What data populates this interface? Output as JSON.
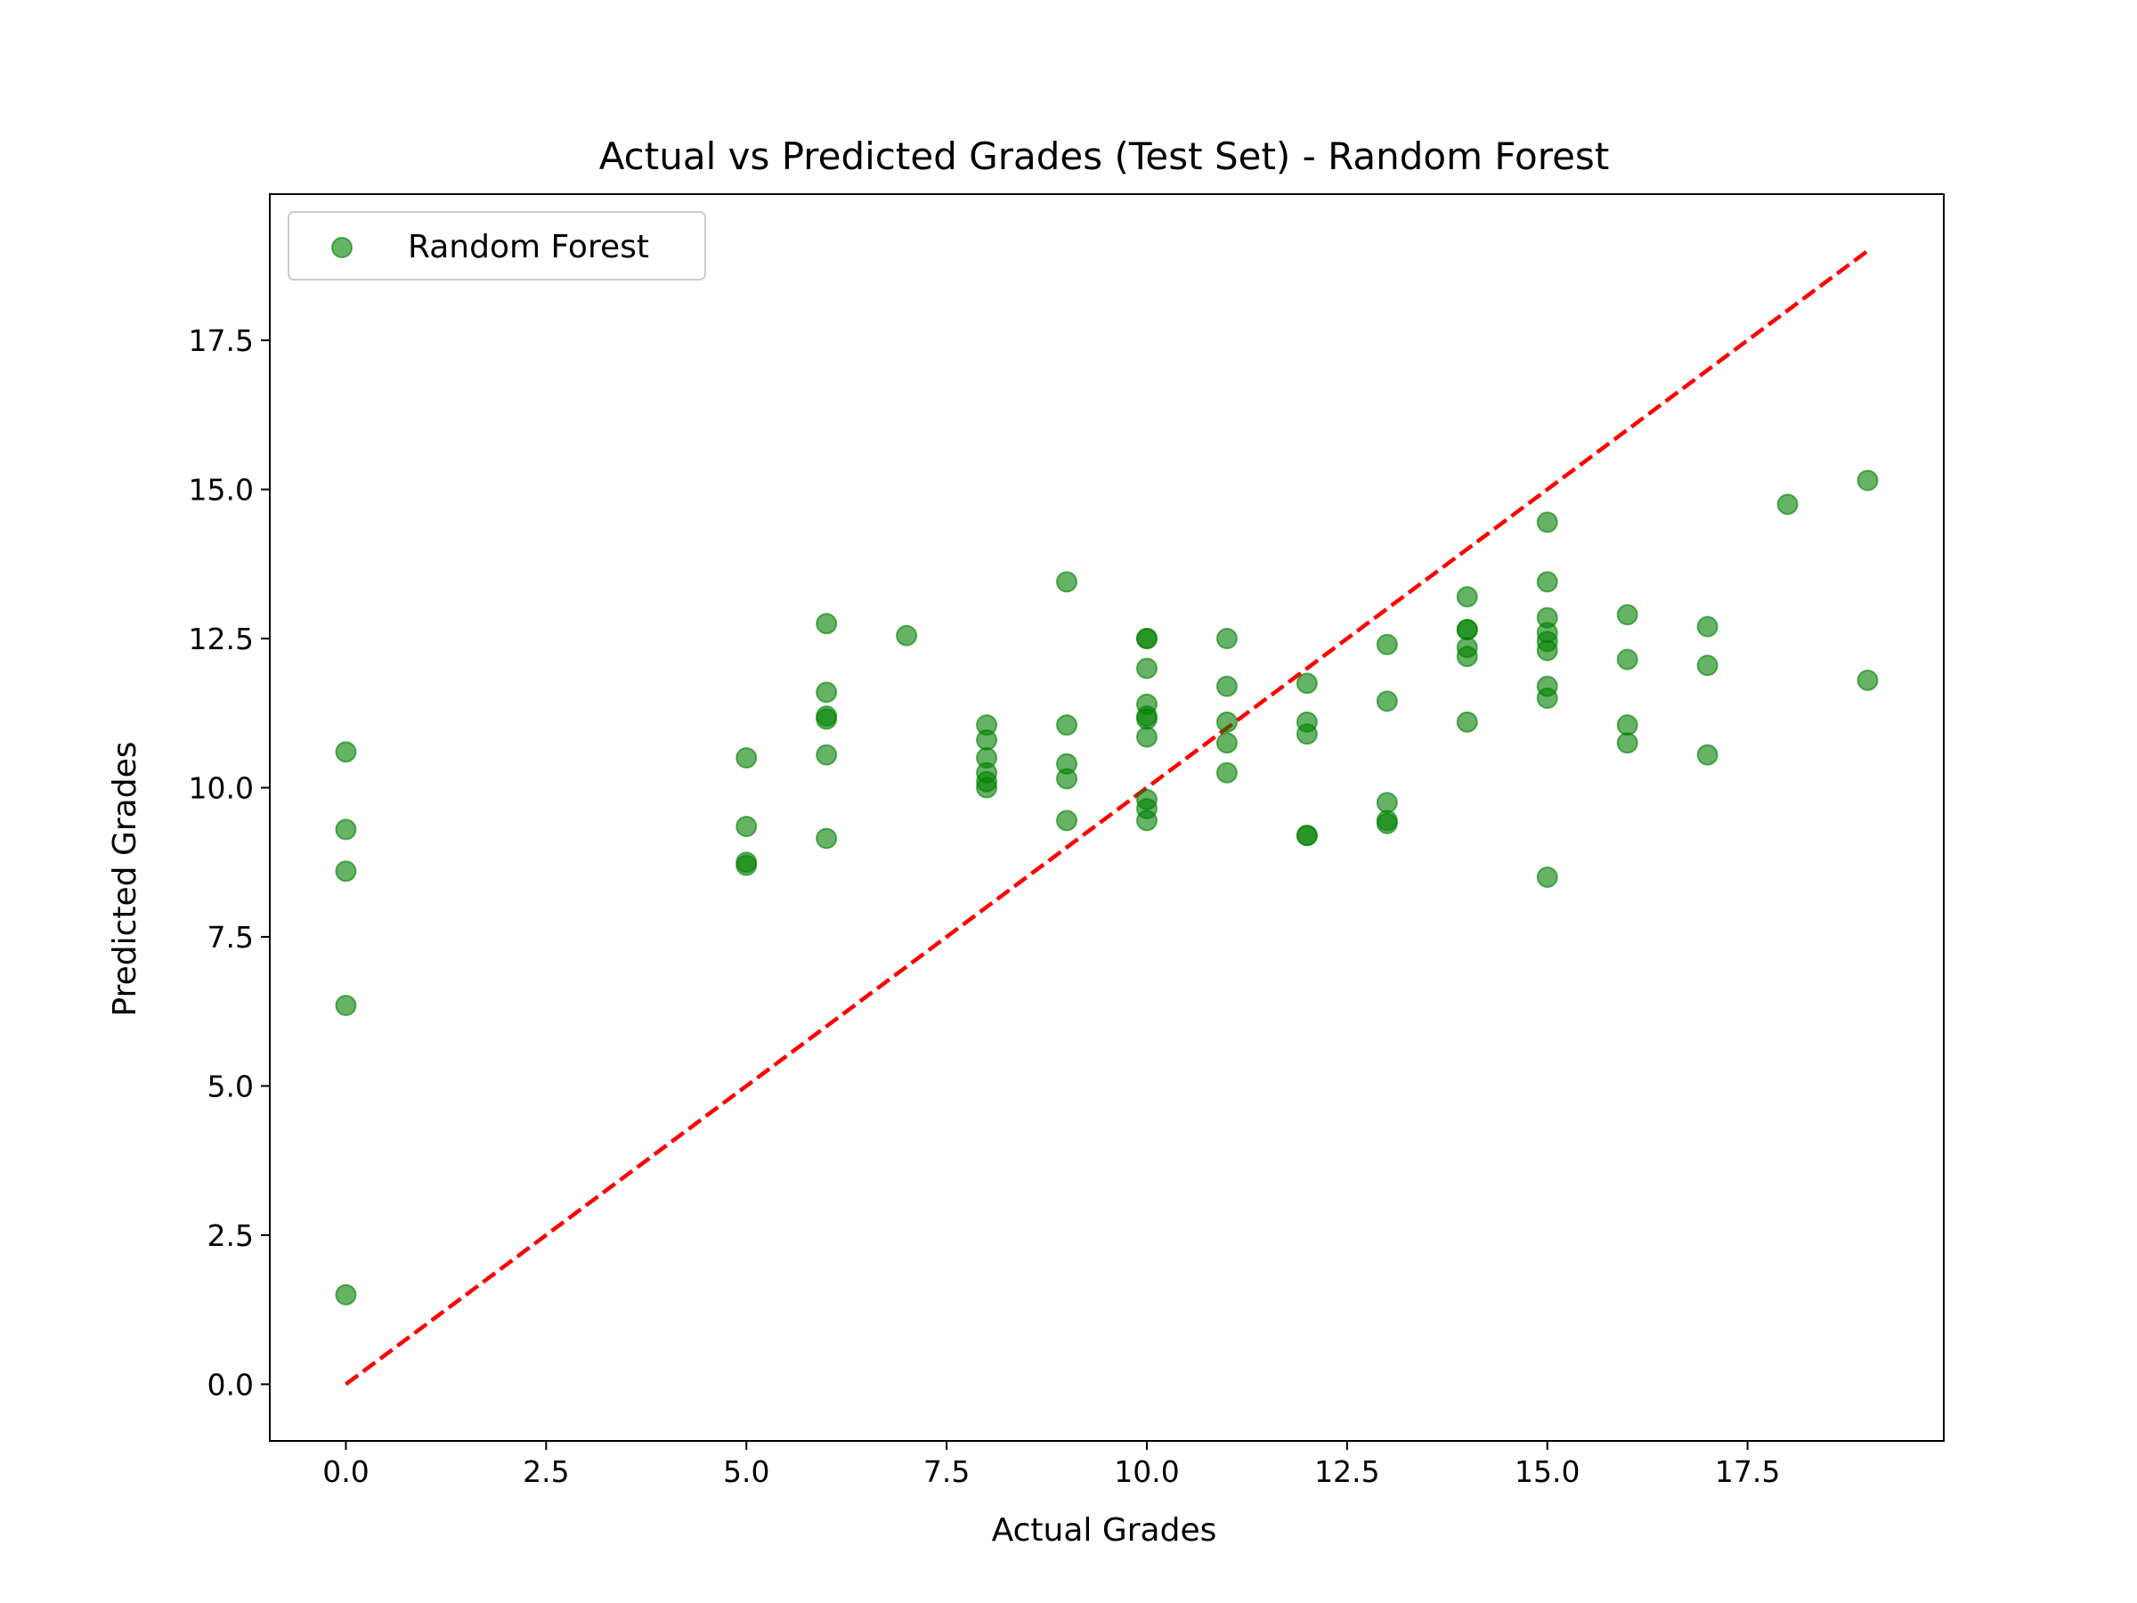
{
  "chart_data": {
    "type": "scatter",
    "title": "Actual vs Predicted Grades (Test Set) - Random Forest",
    "xlabel": "Actual Grades",
    "ylabel": "Predicted Grades",
    "xlim": [
      -0.95,
      19.95
    ],
    "ylim": [
      -0.95,
      19.95
    ],
    "xticks": [
      "0.0",
      "2.5",
      "5.0",
      "7.5",
      "10.0",
      "12.5",
      "15.0",
      "17.5"
    ],
    "yticks": [
      "0.0",
      "2.5",
      "5.0",
      "7.5",
      "10.0",
      "12.5",
      "15.0",
      "17.5"
    ],
    "grid": false,
    "legend": {
      "position": "top-left"
    },
    "colors": {
      "points": "#008000",
      "reference_line": "#ff0000"
    },
    "series": [
      {
        "name": "Random Forest",
        "type": "scatter",
        "points": [
          {
            "x": 0,
            "y": 10.6
          },
          {
            "x": 0,
            "y": 9.3
          },
          {
            "x": 0,
            "y": 8.6
          },
          {
            "x": 0,
            "y": 6.35
          },
          {
            "x": 0,
            "y": 1.5
          },
          {
            "x": 5,
            "y": 10.5
          },
          {
            "x": 5,
            "y": 9.35
          },
          {
            "x": 5,
            "y": 8.75
          },
          {
            "x": 5,
            "y": 8.7
          },
          {
            "x": 6,
            "y": 12.75
          },
          {
            "x": 6,
            "y": 11.6
          },
          {
            "x": 6,
            "y": 11.2
          },
          {
            "x": 6,
            "y": 11.15
          },
          {
            "x": 6,
            "y": 10.55
          },
          {
            "x": 6,
            "y": 9.15
          },
          {
            "x": 7,
            "y": 12.55
          },
          {
            "x": 8,
            "y": 11.05
          },
          {
            "x": 8,
            "y": 10.8
          },
          {
            "x": 8,
            "y": 10.5
          },
          {
            "x": 8,
            "y": 10.25
          },
          {
            "x": 8,
            "y": 10.1
          },
          {
            "x": 8,
            "y": 10.0
          },
          {
            "x": 9,
            "y": 13.45
          },
          {
            "x": 9,
            "y": 11.05
          },
          {
            "x": 9,
            "y": 10.4
          },
          {
            "x": 9,
            "y": 10.15
          },
          {
            "x": 9,
            "y": 9.45
          },
          {
            "x": 10,
            "y": 12.5
          },
          {
            "x": 10,
            "y": 12.5
          },
          {
            "x": 10,
            "y": 12.0
          },
          {
            "x": 10,
            "y": 11.4
          },
          {
            "x": 10,
            "y": 11.2
          },
          {
            "x": 10,
            "y": 11.15
          },
          {
            "x": 10,
            "y": 10.85
          },
          {
            "x": 10,
            "y": 9.8
          },
          {
            "x": 10,
            "y": 9.65
          },
          {
            "x": 10,
            "y": 9.45
          },
          {
            "x": 11,
            "y": 12.5
          },
          {
            "x": 11,
            "y": 11.7
          },
          {
            "x": 11,
            "y": 11.1
          },
          {
            "x": 11,
            "y": 10.75
          },
          {
            "x": 11,
            "y": 10.25
          },
          {
            "x": 12,
            "y": 11.75
          },
          {
            "x": 12,
            "y": 11.1
          },
          {
            "x": 12,
            "y": 10.9
          },
          {
            "x": 12,
            "y": 9.2
          },
          {
            "x": 12,
            "y": 9.2
          },
          {
            "x": 13,
            "y": 12.4
          },
          {
            "x": 13,
            "y": 11.45
          },
          {
            "x": 13,
            "y": 9.75
          },
          {
            "x": 13,
            "y": 9.45
          },
          {
            "x": 13,
            "y": 9.4
          },
          {
            "x": 14,
            "y": 13.2
          },
          {
            "x": 14,
            "y": 12.65
          },
          {
            "x": 14,
            "y": 12.65
          },
          {
            "x": 14,
            "y": 12.35
          },
          {
            "x": 14,
            "y": 12.2
          },
          {
            "x": 14,
            "y": 11.1
          },
          {
            "x": 15,
            "y": 14.45
          },
          {
            "x": 15,
            "y": 13.45
          },
          {
            "x": 15,
            "y": 12.85
          },
          {
            "x": 15,
            "y": 12.6
          },
          {
            "x": 15,
            "y": 12.45
          },
          {
            "x": 15,
            "y": 12.3
          },
          {
            "x": 15,
            "y": 11.7
          },
          {
            "x": 15,
            "y": 11.5
          },
          {
            "x": 15,
            "y": 8.5
          },
          {
            "x": 16,
            "y": 12.9
          },
          {
            "x": 16,
            "y": 12.15
          },
          {
            "x": 16,
            "y": 11.05
          },
          {
            "x": 16,
            "y": 10.75
          },
          {
            "x": 17,
            "y": 12.7
          },
          {
            "x": 17,
            "y": 12.05
          },
          {
            "x": 17,
            "y": 10.55
          },
          {
            "x": 18,
            "y": 14.75
          },
          {
            "x": 19,
            "y": 15.15
          },
          {
            "x": 19,
            "y": 11.8
          }
        ]
      },
      {
        "type": "line",
        "style": "dashed",
        "points": [
          {
            "x": 0,
            "y": 0
          },
          {
            "x": 19,
            "y": 19
          }
        ]
      }
    ]
  }
}
